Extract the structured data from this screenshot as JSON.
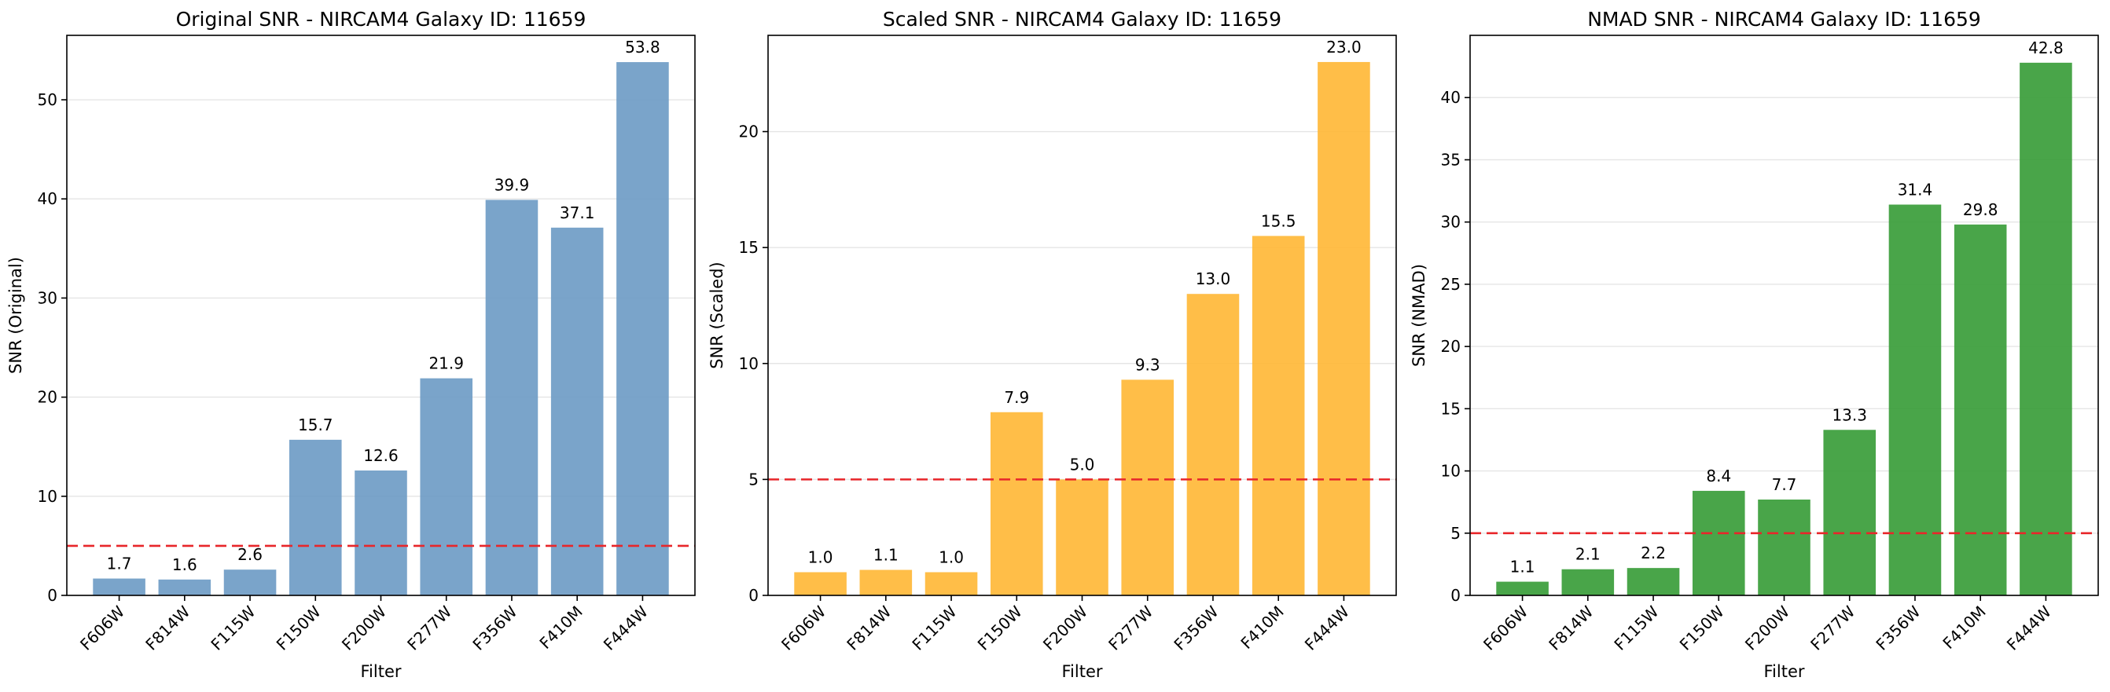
{
  "chart_data": [
    {
      "type": "bar",
      "title": "Original SNR - NIRCAM4 Galaxy ID: 11659",
      "xlabel": "Filter",
      "ylabel": "SNR (Original)",
      "categories": [
        "F606W",
        "F814W",
        "F115W",
        "F150W",
        "F200W",
        "F277W",
        "F356W",
        "F410M",
        "F444W"
      ],
      "values": [
        1.7,
        1.6,
        2.6,
        15.7,
        12.6,
        21.9,
        39.9,
        37.1,
        53.8
      ],
      "value_labels": [
        "1.7",
        "1.6",
        "2.6",
        "15.7",
        "12.6",
        "21.9",
        "39.9",
        "37.1",
        "53.8"
      ],
      "ylim": [
        0,
        56.5
      ],
      "yticks": [
        0,
        10,
        20,
        30,
        40,
        50
      ],
      "ytick_labels": [
        "0",
        "10",
        "20",
        "30",
        "40",
        "50"
      ],
      "threshold": 5,
      "color": "#6f9cc6",
      "grid": true
    },
    {
      "type": "bar",
      "title": "Scaled SNR - NIRCAM4 Galaxy ID: 11659",
      "xlabel": "Filter",
      "ylabel": "SNR (Scaled)",
      "categories": [
        "F606W",
        "F814W",
        "F115W",
        "F150W",
        "F200W",
        "F277W",
        "F356W",
        "F410M",
        "F444W"
      ],
      "values": [
        1.0,
        1.1,
        1.0,
        7.9,
        5.0,
        9.3,
        13.0,
        15.5,
        23.0
      ],
      "value_labels": [
        "1.0",
        "1.1",
        "1.0",
        "7.9",
        "5.0",
        "9.3",
        "13.0",
        "15.5",
        "23.0"
      ],
      "ylim": [
        0,
        24.15
      ],
      "yticks": [
        0,
        5,
        10,
        15,
        20
      ],
      "ytick_labels": [
        "0",
        "5",
        "10",
        "15",
        "20"
      ],
      "threshold": 5,
      "color": "#ffb838",
      "grid": true
    },
    {
      "type": "bar",
      "title": "NMAD SNR - NIRCAM4 Galaxy ID: 11659",
      "xlabel": "Filter",
      "ylabel": "SNR (NMAD)",
      "categories": [
        "F606W",
        "F814W",
        "F115W",
        "F150W",
        "F200W",
        "F277W",
        "F356W",
        "F410M",
        "F444W"
      ],
      "values": [
        1.1,
        2.1,
        2.2,
        8.4,
        7.7,
        13.3,
        31.4,
        29.8,
        42.8
      ],
      "value_labels": [
        "1.1",
        "2.1",
        "2.2",
        "8.4",
        "7.7",
        "13.3",
        "31.4",
        "29.8",
        "42.8"
      ],
      "ylim": [
        0,
        45.0
      ],
      "yticks": [
        0,
        5,
        10,
        15,
        20,
        25,
        30,
        35,
        40
      ],
      "ytick_labels": [
        "0",
        "5",
        "10",
        "15",
        "20",
        "25",
        "30",
        "35",
        "40"
      ],
      "threshold": 5,
      "color": "#3a9d3a",
      "grid": true
    }
  ]
}
